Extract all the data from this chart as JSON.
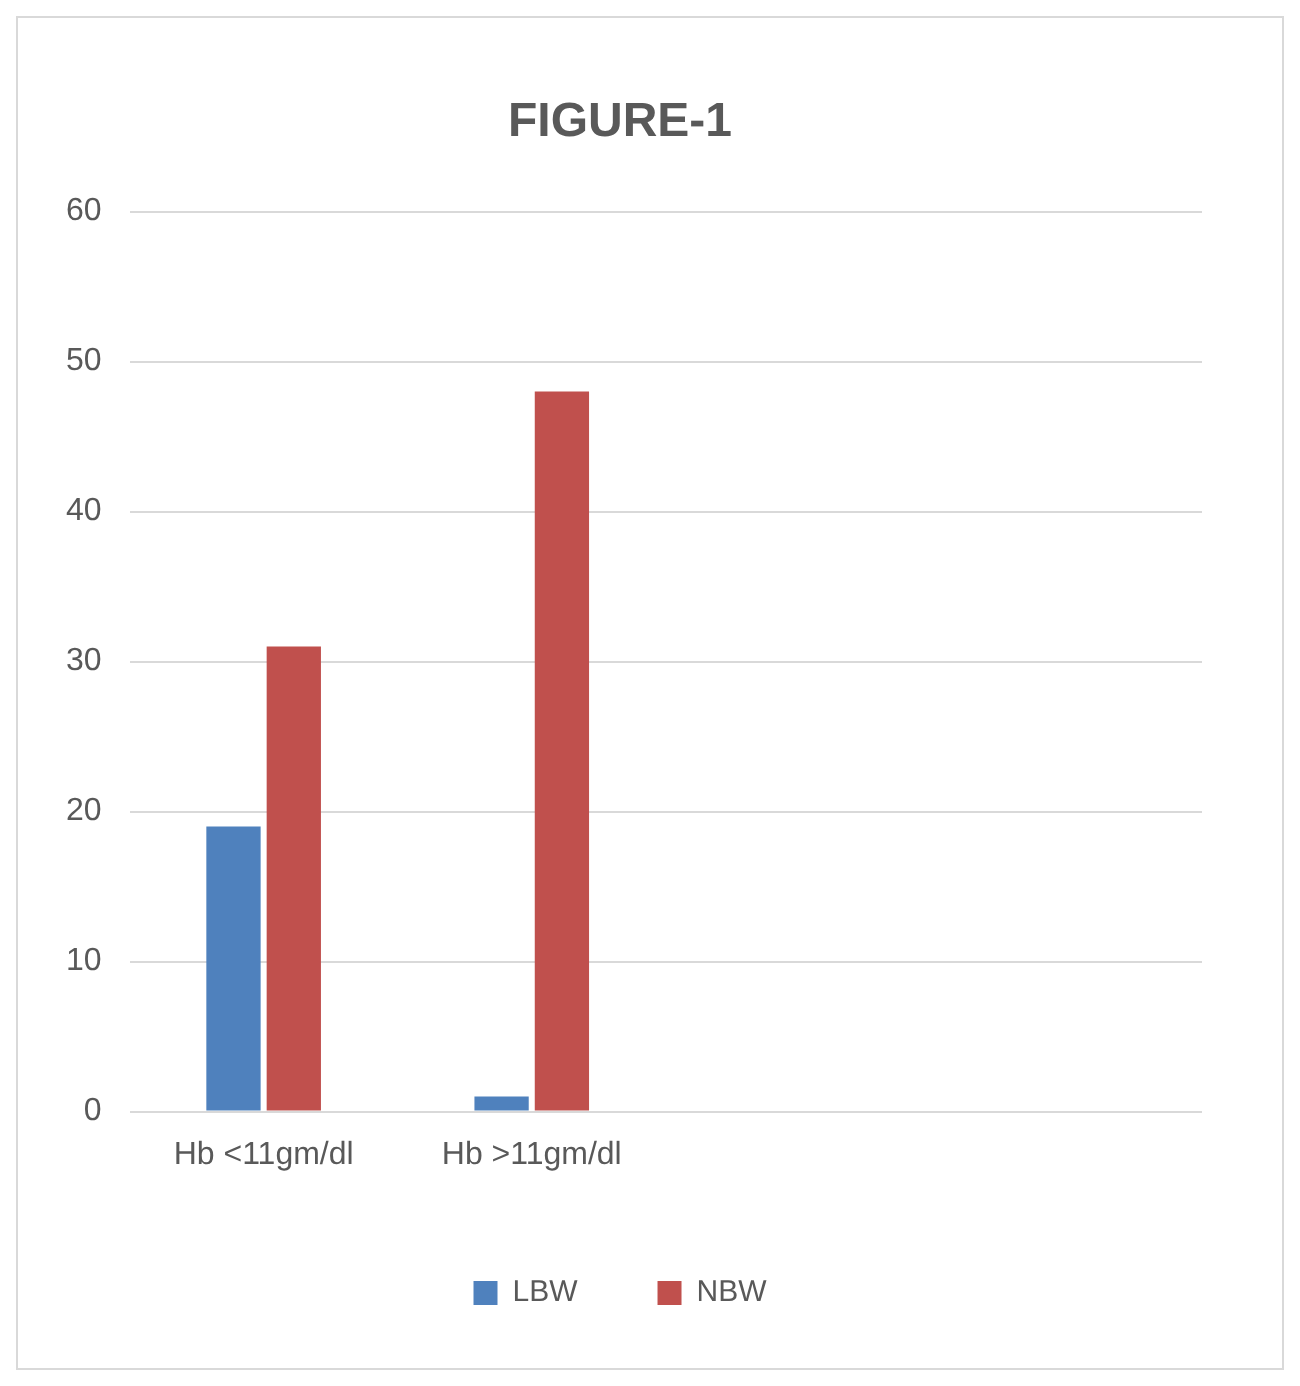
{
  "chart_data": {
    "type": "bar",
    "title": "FIGURE-1",
    "categories": [
      "Hb <11gm/dl",
      "Hb >11gm/dl",
      null,
      null
    ],
    "series": [
      {
        "name": "LBW",
        "color": "#4f81bd",
        "values": [
          19,
          1,
          null,
          null
        ]
      },
      {
        "name": "NBW",
        "color": "#c0504d",
        "values": [
          31,
          48,
          null,
          null
        ]
      }
    ],
    "ylim": [
      0,
      60
    ],
    "yticks": [
      0,
      10,
      20,
      30,
      40,
      50,
      60
    ],
    "grid": "y",
    "legend": "bottom"
  }
}
